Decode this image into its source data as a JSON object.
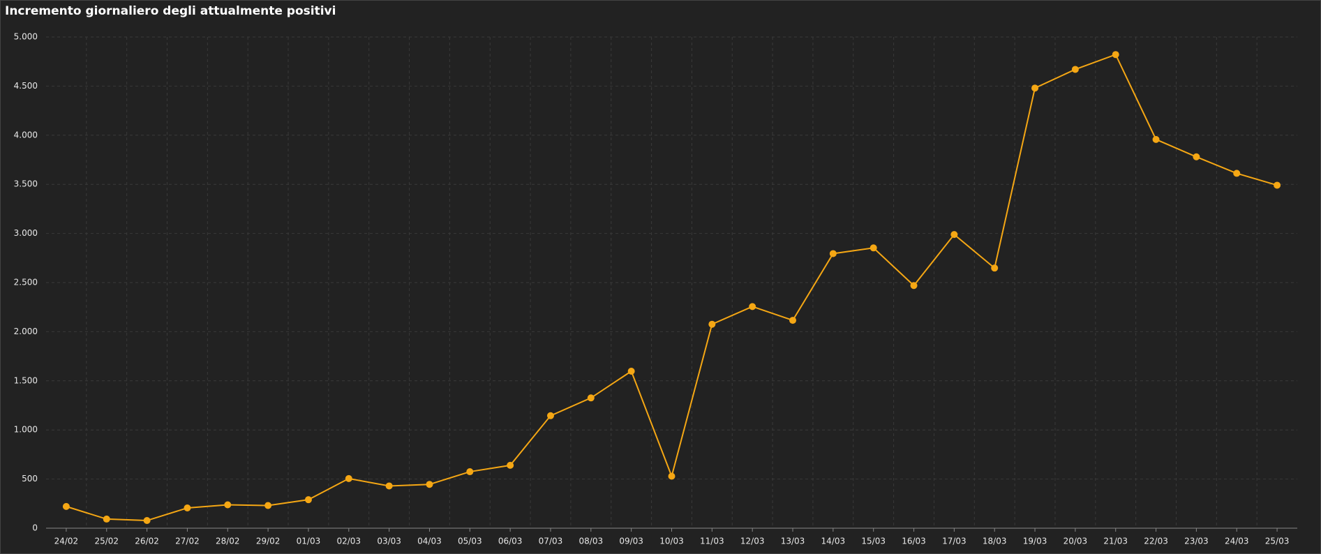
{
  "chart_data": {
    "type": "line",
    "title": "Incremento giornaliero degli attualmente positivi",
    "categories": [
      "24/02",
      "25/02",
      "26/02",
      "27/02",
      "28/02",
      "29/02",
      "01/03",
      "02/03",
      "03/03",
      "04/03",
      "05/03",
      "06/03",
      "07/03",
      "08/03",
      "09/03",
      "10/03",
      "11/03",
      "12/03",
      "13/03",
      "14/03",
      "15/03",
      "16/03",
      "17/03",
      "18/03",
      "19/03",
      "20/03",
      "21/03",
      "22/03",
      "23/03",
      "24/03",
      "25/03"
    ],
    "series": [
      {
        "color": "#f5a714",
        "values": [
          221,
          93,
          78,
          206,
          238,
          231,
          290,
          505,
          430,
          446,
          575,
          640,
          1145,
          1326,
          1598,
          529,
          2076,
          2256,
          2116,
          2795,
          2853,
          2470,
          2989,
          2648,
          4480,
          4670,
          4821,
          3957,
          3780,
          3612,
          3491
        ]
      }
    ],
    "ylim": [
      0,
      5000
    ],
    "yticks": [
      0,
      500,
      {
        "value": 1000,
        "label": "1.000"
      },
      {
        "value": 1500,
        "label": "1.500"
      },
      {
        "value": 2000,
        "label": "2.000"
      },
      {
        "value": 2500,
        "label": "2.500"
      },
      {
        "value": 3000,
        "label": "3.000"
      },
      {
        "value": 3500,
        "label": "3.500"
      },
      {
        "value": 4000,
        "label": "4.000"
      },
      {
        "value": 4500,
        "label": "4.500"
      },
      {
        "value": 5000,
        "label": "5.000"
      }
    ],
    "grid": true
  }
}
